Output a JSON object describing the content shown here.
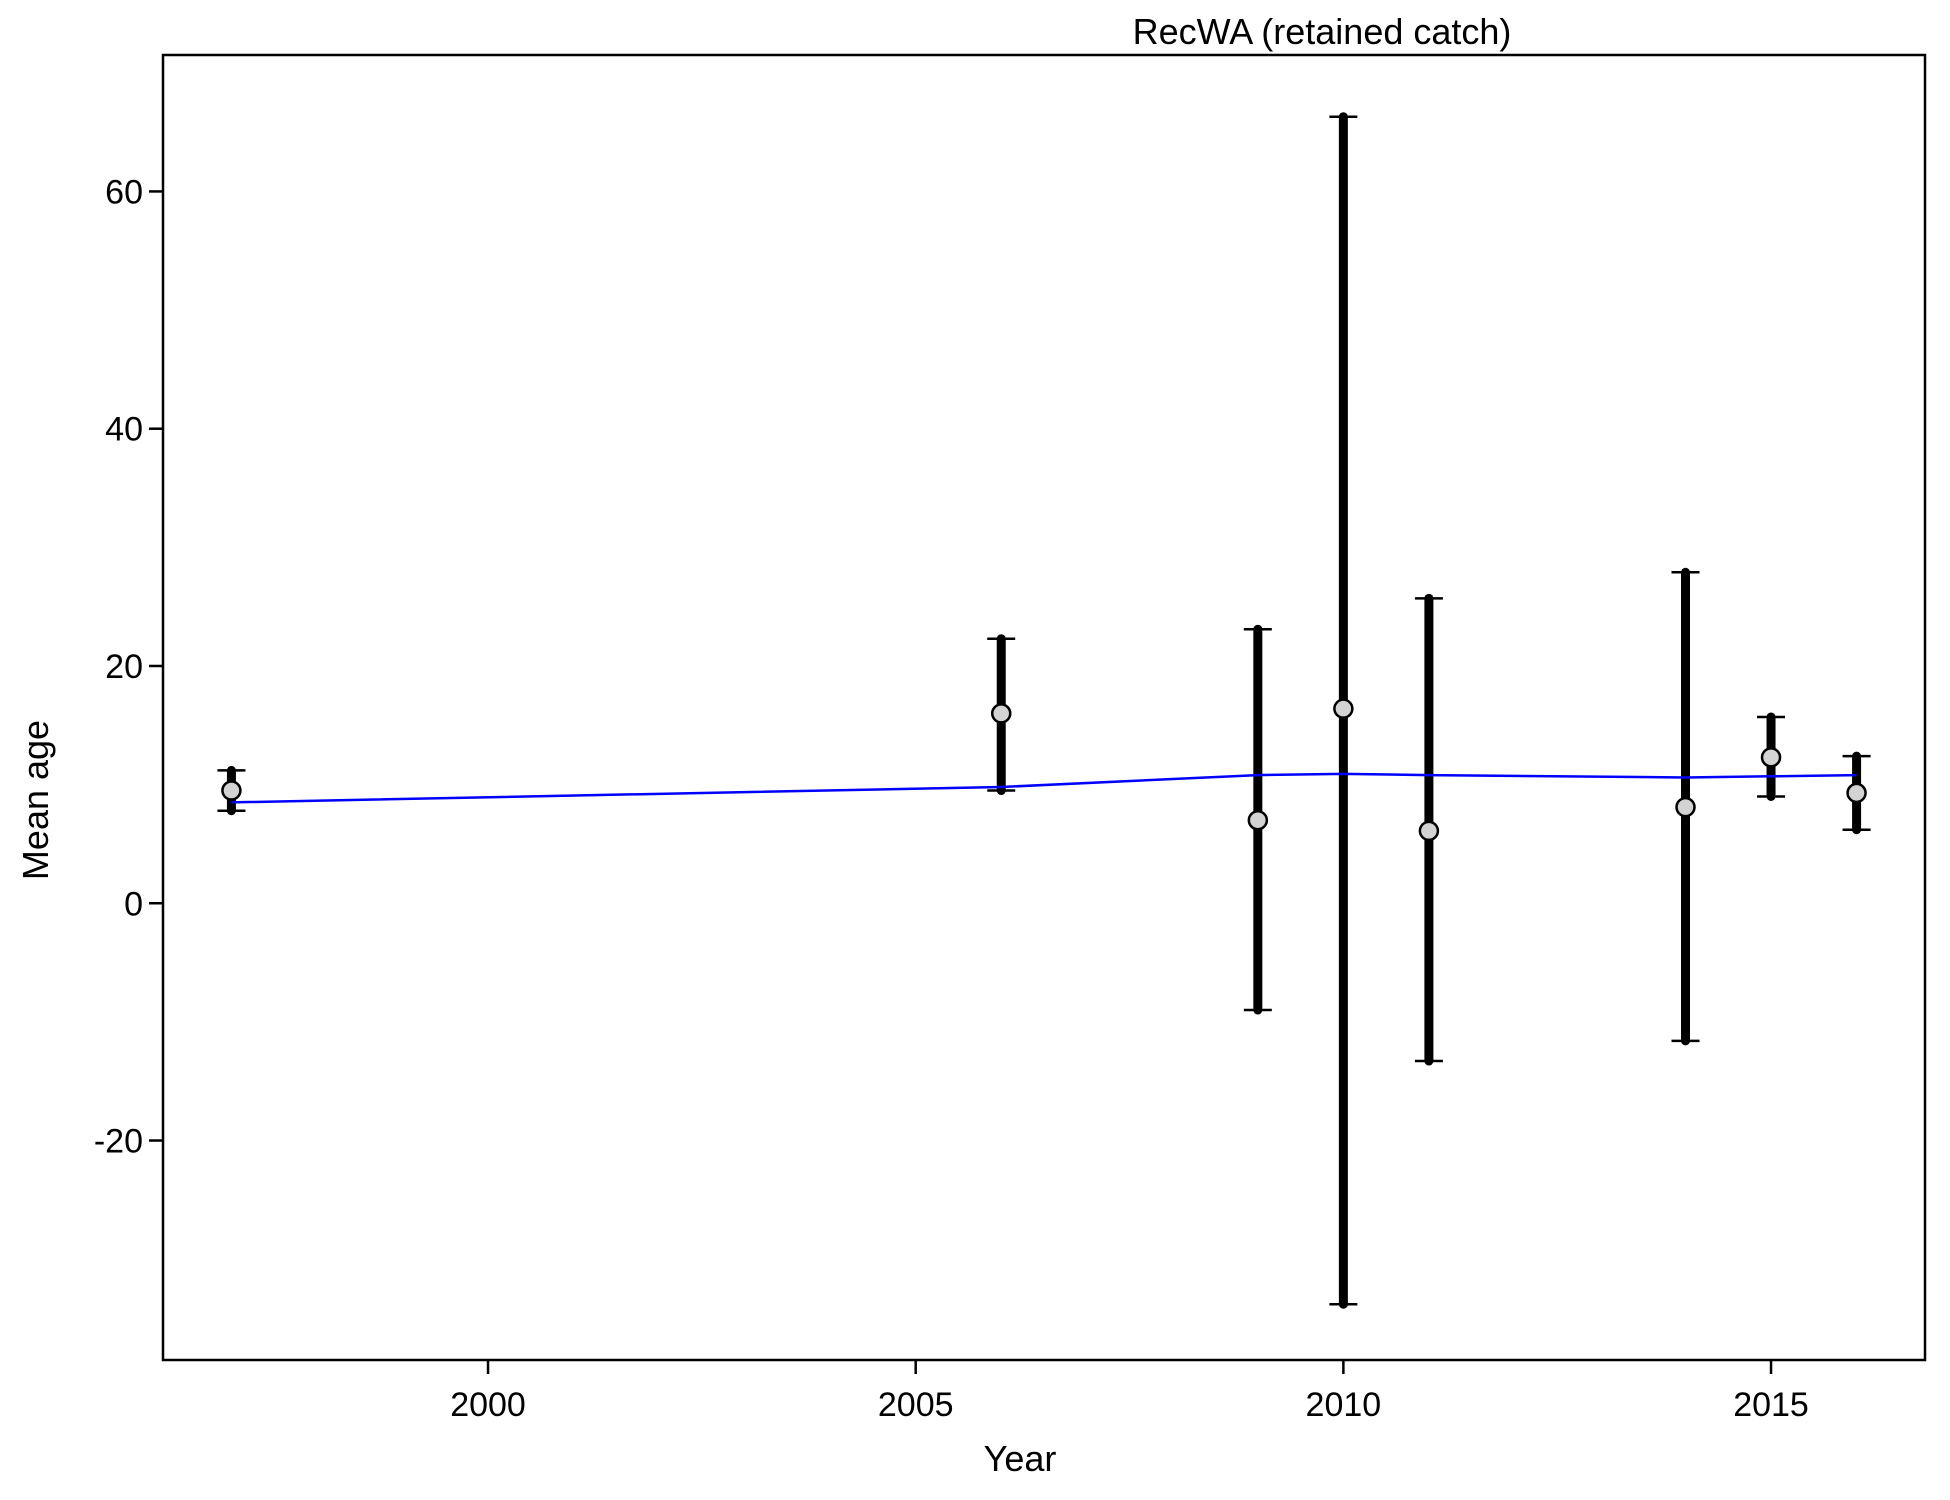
{
  "chart_data": {
    "type": "scatter",
    "title": "RecWA (retained catch)",
    "xlabel": "Year",
    "ylabel": "Mean age",
    "xlim": [
      1996.2,
      2016.8
    ],
    "ylim": [
      -38.5,
      71.5
    ],
    "xticks": [
      2000,
      2005,
      2010,
      2015
    ],
    "yticks": [
      -20,
      0,
      20,
      40,
      60
    ],
    "grid": false,
    "legend": "none",
    "observed": {
      "x": [
        1997,
        2006,
        2009,
        2010,
        2011,
        2014,
        2015,
        2016
      ],
      "y": [
        9.5,
        16.0,
        7.0,
        16.4,
        6.1,
        8.1,
        12.3,
        9.3
      ],
      "lower": [
        7.8,
        9.5,
        -9.0,
        -33.8,
        -13.3,
        -11.6,
        9.0,
        6.2
      ],
      "upper": [
        11.2,
        22.3,
        23.1,
        66.3,
        25.7,
        27.9,
        15.7,
        12.4
      ]
    },
    "expected": {
      "x": [
        1997,
        2006,
        2009,
        2010,
        2011,
        2014,
        2015,
        2016
      ],
      "y": [
        8.5,
        9.8,
        10.8,
        10.9,
        10.8,
        10.6,
        10.7,
        10.8
      ]
    },
    "colors": {
      "expected_line": "#0000ff",
      "error_bar": "#000000",
      "point_fill": "#d3d3d3",
      "point_stroke": "#000000"
    }
  }
}
